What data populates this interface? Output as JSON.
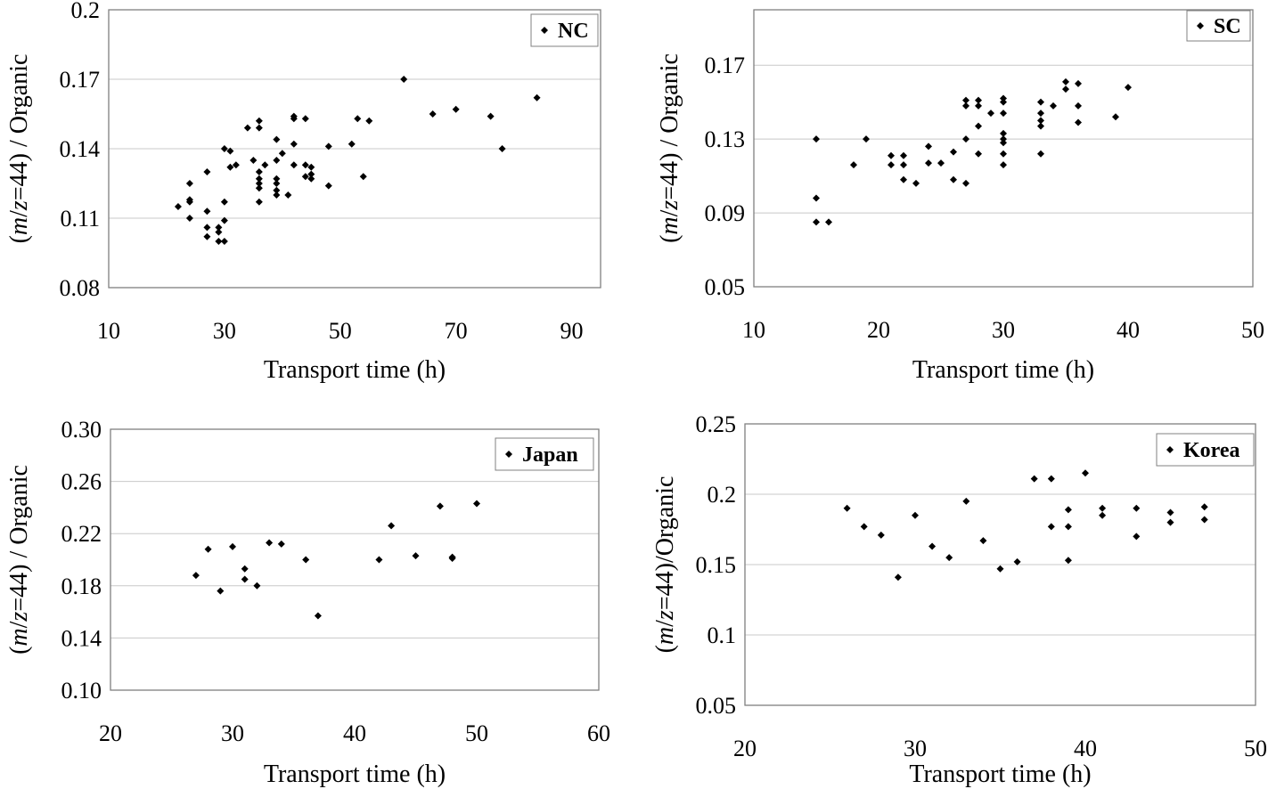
{
  "chart_data": [
    {
      "type": "scatter",
      "legend": "NC",
      "legend_position": "top-right",
      "grid": "horizontal",
      "xlabel": "Transport time (h)",
      "ylabel": "(m/z=44) / Organic",
      "xlim": [
        10,
        95
      ],
      "ylim": [
        0.08,
        0.2
      ],
      "xticks": [
        "10",
        "30",
        "50",
        "70",
        "90"
      ],
      "xtick_values": [
        10,
        30,
        50,
        70,
        90
      ],
      "yticks": [
        "0.08",
        "0.11",
        "0.14",
        "0.17",
        "0.2"
      ],
      "ytick_values": [
        0.08,
        0.11,
        0.14,
        0.17,
        0.2
      ],
      "marker_color": "#000000",
      "points": [
        [
          22,
          0.115
        ],
        [
          24,
          0.11
        ],
        [
          24,
          0.117
        ],
        [
          24,
          0.118
        ],
        [
          24,
          0.125
        ],
        [
          27,
          0.13
        ],
        [
          27,
          0.113
        ],
        [
          27,
          0.106
        ],
        [
          27,
          0.102
        ],
        [
          29,
          0.106
        ],
        [
          29,
          0.104
        ],
        [
          29,
          0.1
        ],
        [
          30,
          0.1
        ],
        [
          30,
          0.109
        ],
        [
          30,
          0.117
        ],
        [
          30,
          0.14
        ],
        [
          31,
          0.139
        ],
        [
          31,
          0.132
        ],
        [
          32,
          0.133
        ],
        [
          34,
          0.149
        ],
        [
          35,
          0.135
        ],
        [
          36,
          0.152
        ],
        [
          36,
          0.149
        ],
        [
          36,
          0.13
        ],
        [
          36,
          0.127
        ],
        [
          36,
          0.125
        ],
        [
          36,
          0.123
        ],
        [
          36,
          0.117
        ],
        [
          37,
          0.133
        ],
        [
          39,
          0.144
        ],
        [
          39,
          0.135
        ],
        [
          39,
          0.127
        ],
        [
          39,
          0.125
        ],
        [
          39,
          0.122
        ],
        [
          39,
          0.12
        ],
        [
          40,
          0.138
        ],
        [
          41,
          0.12
        ],
        [
          42,
          0.154
        ],
        [
          42,
          0.153
        ],
        [
          42,
          0.142
        ],
        [
          42,
          0.133
        ],
        [
          44,
          0.153
        ],
        [
          44,
          0.133
        ],
        [
          44,
          0.128
        ],
        [
          45,
          0.132
        ],
        [
          45,
          0.129
        ],
        [
          45,
          0.127
        ],
        [
          48,
          0.141
        ],
        [
          48,
          0.124
        ],
        [
          52,
          0.142
        ],
        [
          53,
          0.153
        ],
        [
          54,
          0.128
        ],
        [
          55,
          0.152
        ],
        [
          61,
          0.17
        ],
        [
          66,
          0.155
        ],
        [
          70,
          0.157
        ],
        [
          76,
          0.154
        ],
        [
          78,
          0.14
        ],
        [
          84,
          0.162
        ]
      ]
    },
    {
      "type": "scatter",
      "legend": "SC",
      "legend_position": "top-right",
      "grid": "horizontal",
      "xlabel": "Transport time (h)",
      "ylabel": "(m/z=44) / Organic",
      "xlim": [
        10,
        50
      ],
      "ylim": [
        0.05,
        0.2
      ],
      "xticks": [
        "10",
        "20",
        "30",
        "40",
        "50"
      ],
      "xtick_values": [
        10,
        20,
        30,
        40,
        50
      ],
      "yticks": [
        "0.05",
        "0.09",
        "0.13",
        "0.17"
      ],
      "ytick_values": [
        0.05,
        0.09,
        0.13,
        0.17
      ],
      "marker_color": "#000000",
      "points": [
        [
          15,
          0.13
        ],
        [
          15,
          0.098
        ],
        [
          15,
          0.085
        ],
        [
          16,
          0.085
        ],
        [
          18,
          0.116
        ],
        [
          19,
          0.13
        ],
        [
          21,
          0.121
        ],
        [
          21,
          0.116
        ],
        [
          22,
          0.121
        ],
        [
          22,
          0.116
        ],
        [
          22,
          0.108
        ],
        [
          23,
          0.106
        ],
        [
          24,
          0.126
        ],
        [
          24,
          0.117
        ],
        [
          25,
          0.117
        ],
        [
          26,
          0.123
        ],
        [
          26,
          0.108
        ],
        [
          27,
          0.151
        ],
        [
          27,
          0.148
        ],
        [
          27,
          0.13
        ],
        [
          27,
          0.106
        ],
        [
          28,
          0.151
        ],
        [
          28,
          0.148
        ],
        [
          28,
          0.137
        ],
        [
          28,
          0.122
        ],
        [
          29,
          0.144
        ],
        [
          30,
          0.152
        ],
        [
          30,
          0.15
        ],
        [
          30,
          0.144
        ],
        [
          30,
          0.133
        ],
        [
          30,
          0.13
        ],
        [
          30,
          0.128
        ],
        [
          30,
          0.122
        ],
        [
          30,
          0.116
        ],
        [
          33,
          0.15
        ],
        [
          33,
          0.144
        ],
        [
          33,
          0.14
        ],
        [
          33,
          0.137
        ],
        [
          33,
          0.122
        ],
        [
          34,
          0.148
        ],
        [
          35,
          0.161
        ],
        [
          35,
          0.157
        ],
        [
          36,
          0.16
        ],
        [
          36,
          0.148
        ],
        [
          36,
          0.139
        ],
        [
          39,
          0.142
        ],
        [
          40,
          0.158
        ]
      ]
    },
    {
      "type": "scatter",
      "legend": "Japan",
      "legend_position": "top-right",
      "grid": "horizontal",
      "xlabel": "Transport time (h)",
      "ylabel": "(m/z=44) / Organic",
      "xlim": [
        20,
        60
      ],
      "ylim": [
        0.1,
        0.3
      ],
      "xticks": [
        "20",
        "30",
        "40",
        "50",
        "60"
      ],
      "xtick_values": [
        20,
        30,
        40,
        50,
        60
      ],
      "yticks": [
        "0.10",
        "0.14",
        "0.18",
        "0.22",
        "0.26",
        "0.30"
      ],
      "ytick_values": [
        0.1,
        0.14,
        0.18,
        0.22,
        0.26,
        0.3
      ],
      "marker_color": "#000000",
      "points": [
        [
          27,
          0.188
        ],
        [
          28,
          0.208
        ],
        [
          29,
          0.176
        ],
        [
          30,
          0.21
        ],
        [
          31,
          0.193
        ],
        [
          31,
          0.185
        ],
        [
          32,
          0.18
        ],
        [
          33,
          0.213
        ],
        [
          34,
          0.212
        ],
        [
          36,
          0.2
        ],
        [
          37,
          0.157
        ],
        [
          42,
          0.2
        ],
        [
          43,
          0.226
        ],
        [
          45,
          0.203
        ],
        [
          47,
          0.241
        ],
        [
          48,
          0.202
        ],
        [
          48,
          0.201
        ],
        [
          50,
          0.243
        ]
      ]
    },
    {
      "type": "scatter",
      "legend": "Korea",
      "legend_position": "top-right",
      "grid": "horizontal",
      "xlabel": "Transport time (h)",
      "ylabel": "(m/z=44)/Organic",
      "xlim": [
        20,
        50
      ],
      "ylim": [
        0.05,
        0.25
      ],
      "xticks": [
        "20",
        "30",
        "40",
        "50"
      ],
      "xtick_values": [
        20,
        30,
        40,
        50
      ],
      "yticks": [
        "0.05",
        "0.1",
        "0.15",
        "0.2",
        "0.25"
      ],
      "ytick_values": [
        0.05,
        0.1,
        0.15,
        0.2,
        0.25
      ],
      "marker_color": "#000000",
      "points": [
        [
          26,
          0.19
        ],
        [
          27,
          0.177
        ],
        [
          28,
          0.171
        ],
        [
          29,
          0.141
        ],
        [
          30,
          0.185
        ],
        [
          31,
          0.163
        ],
        [
          32,
          0.155
        ],
        [
          33,
          0.195
        ],
        [
          34,
          0.167
        ],
        [
          35,
          0.147
        ],
        [
          36,
          0.152
        ],
        [
          37,
          0.211
        ],
        [
          38,
          0.211
        ],
        [
          38,
          0.177
        ],
        [
          39,
          0.189
        ],
        [
          39,
          0.177
        ],
        [
          39,
          0.153
        ],
        [
          40,
          0.215
        ],
        [
          41,
          0.19
        ],
        [
          41,
          0.185
        ],
        [
          43,
          0.19
        ],
        [
          43,
          0.17
        ],
        [
          45,
          0.187
        ],
        [
          45,
          0.18
        ],
        [
          47,
          0.191
        ],
        [
          47,
          0.182
        ]
      ]
    }
  ]
}
